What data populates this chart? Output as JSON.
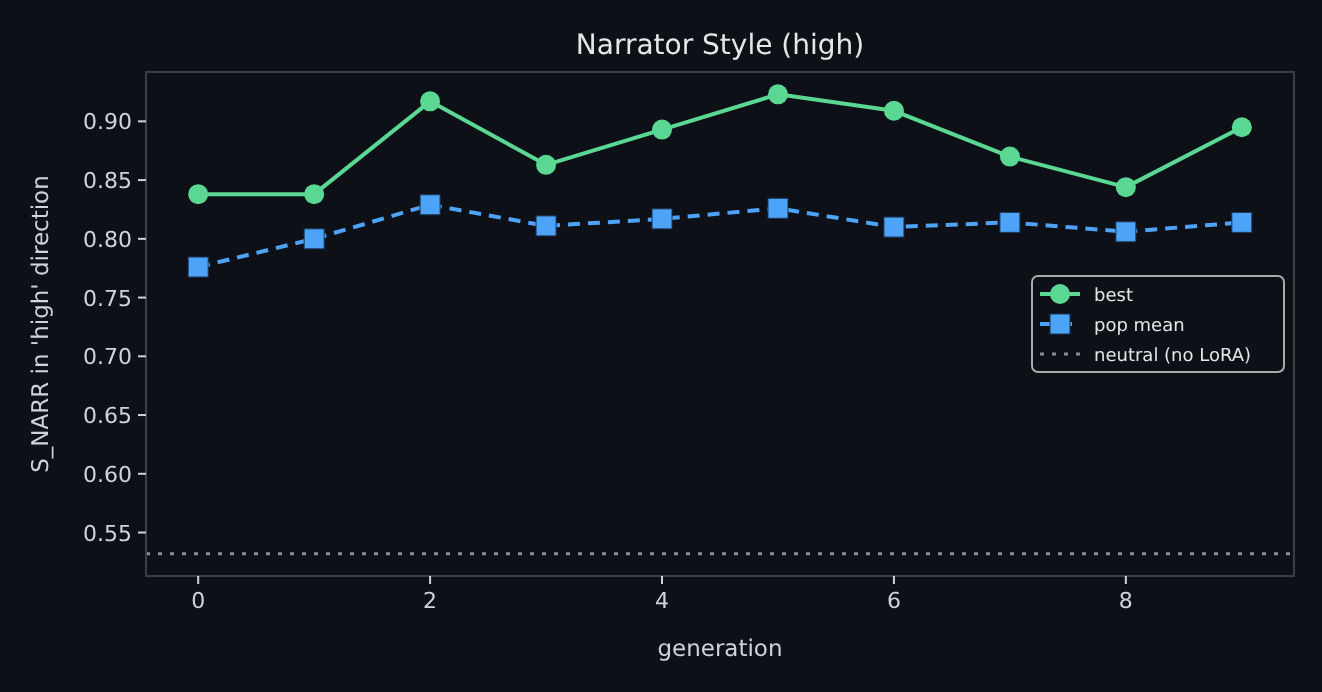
{
  "chart_data": {
    "type": "line",
    "title": "Narrator Style (high)",
    "xlabel": "generation",
    "ylabel": "S_NARR in 'high' direction",
    "x": [
      0,
      1,
      2,
      3,
      4,
      5,
      6,
      7,
      8,
      9
    ],
    "series": [
      {
        "name": "best",
        "color": "#5ad893",
        "marker": "circle",
        "line_style": "solid",
        "values": [
          0.838,
          0.838,
          0.917,
          0.863,
          0.893,
          0.923,
          0.909,
          0.87,
          0.844,
          0.895
        ]
      },
      {
        "name": "pop mean",
        "color": "#4da3f7",
        "marker": "square",
        "line_style": "dashed",
        "values": [
          0.776,
          0.8,
          0.829,
          0.811,
          0.817,
          0.826,
          0.81,
          0.814,
          0.806,
          0.814
        ]
      }
    ],
    "ref_lines": [
      {
        "axis": "y",
        "value": 0.532,
        "label": "neutral (no LoRA)",
        "color": "#8b8f96",
        "line_style": "dotted"
      }
    ],
    "xlim": [
      -0.45,
      9.45
    ],
    "xticks": [
      0,
      2,
      4,
      6,
      8
    ],
    "ylim": [
      0.513,
      0.942
    ],
    "yticks": [
      0.55,
      {
        "value": 0.6,
        "label": "0.60"
      },
      0.65,
      {
        "value": 0.7,
        "label": "0.70"
      },
      0.75,
      {
        "value": 0.8,
        "label": "0.80"
      },
      0.85,
      {
        "value": 0.9,
        "label": "0.90"
      }
    ],
    "grid": false,
    "legend": "right"
  }
}
